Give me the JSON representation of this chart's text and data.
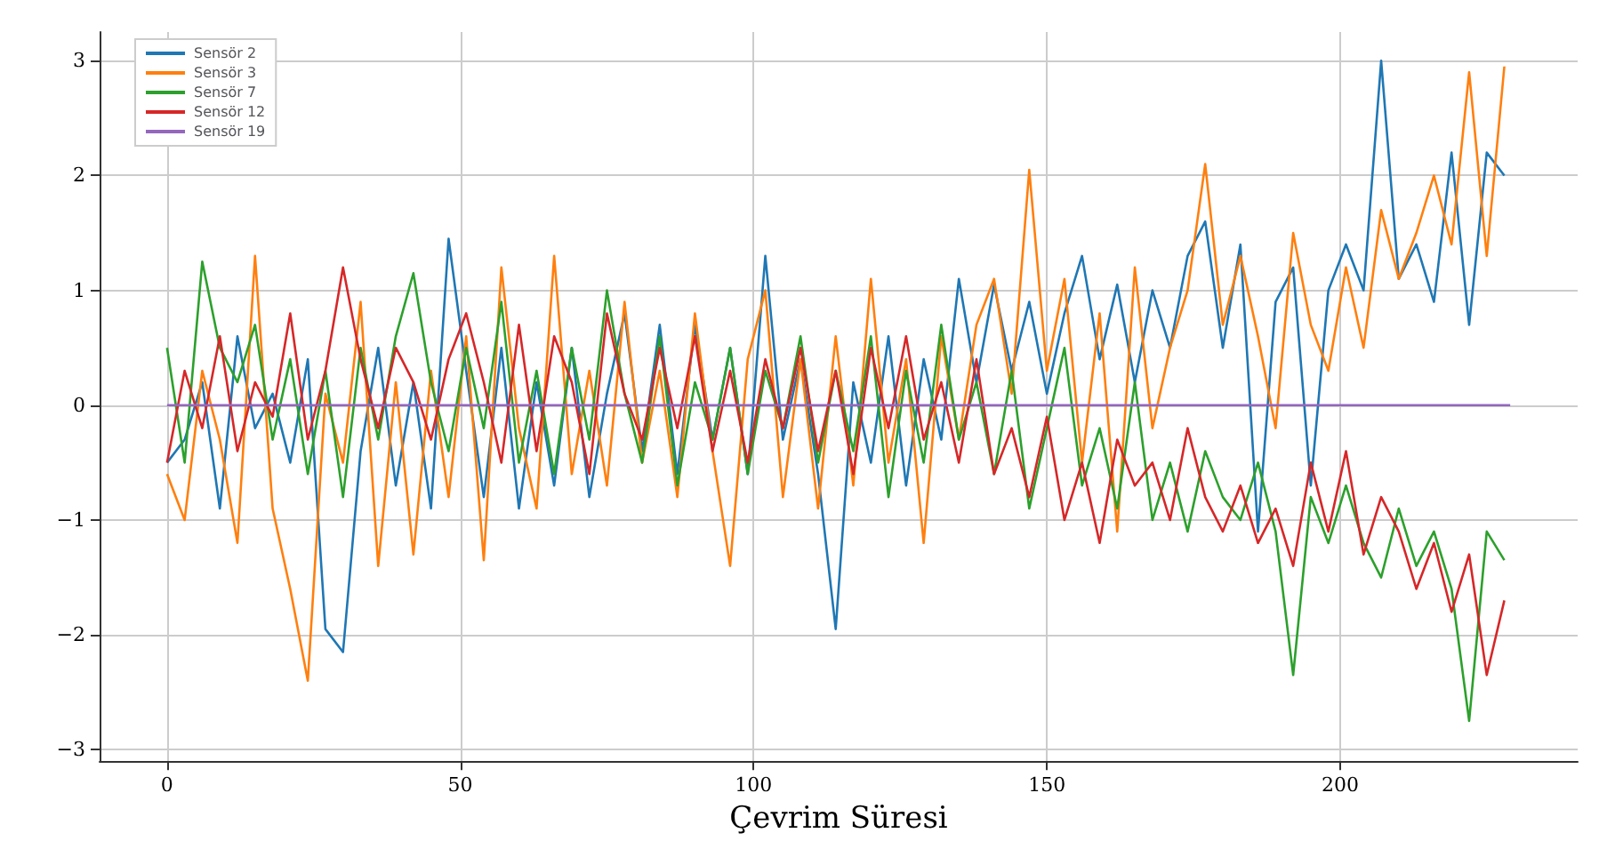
{
  "chart_data": {
    "type": "line",
    "xlabel": "Çevrim Süresi",
    "xlim": [
      -11.5,
      240.5
    ],
    "xticks": [
      0,
      50,
      100,
      150,
      200
    ],
    "ylim": [
      -3.1,
      3.25
    ],
    "yticks": [
      -3,
      -2,
      -1,
      0,
      1,
      2,
      3
    ],
    "grid": true,
    "legend": "top left",
    "marker": "none",
    "line_style": "solid",
    "x": [
      0,
      3,
      6,
      9,
      12,
      15,
      18,
      21,
      24,
      27,
      30,
      33,
      36,
      39,
      42,
      45,
      48,
      51,
      54,
      57,
      60,
      63,
      66,
      69,
      72,
      75,
      78,
      81,
      84,
      87,
      90,
      93,
      96,
      99,
      102,
      105,
      108,
      111,
      114,
      117,
      120,
      123,
      126,
      129,
      132,
      135,
      138,
      141,
      144,
      147,
      150,
      153,
      156,
      159,
      162,
      165,
      168,
      171,
      174,
      177,
      180,
      183,
      186,
      189,
      192,
      195,
      198,
      201,
      204,
      207,
      210,
      213,
      216,
      219,
      222,
      225,
      228
    ],
    "series": [
      {
        "name": "Sensör 2",
        "color": "#1f77b4",
        "values": [
          -0.5,
          -0.3,
          0.2,
          -0.9,
          0.6,
          -0.2,
          0.1,
          -0.5,
          0.4,
          -1.95,
          -2.15,
          -0.4,
          0.5,
          -0.7,
          0.2,
          -0.9,
          1.45,
          0.3,
          -0.8,
          0.5,
          -0.9,
          0.2,
          -0.7,
          0.5,
          -0.8,
          0.1,
          0.8,
          -0.4,
          0.7,
          -0.6,
          0.7,
          -0.3,
          0.5,
          -0.6,
          1.3,
          -0.3,
          0.4,
          -0.6,
          -1.95,
          0.2,
          -0.5,
          0.6,
          -0.7,
          0.4,
          -0.3,
          1.1,
          0.2,
          1.05,
          0.3,
          0.9,
          0.1,
          0.8,
          1.3,
          0.4,
          1.05,
          0.2,
          1.0,
          0.5,
          1.3,
          1.6,
          0.5,
          1.4,
          -1.1,
          0.9,
          1.2,
          -0.7,
          1.0,
          1.4,
          1.0,
          3.0,
          1.1,
          1.4,
          0.9,
          2.2,
          0.7,
          2.2,
          2.0
        ]
      },
      {
        "name": "Sensör 3",
        "color": "#ff7f0e",
        "values": [
          -0.6,
          -1.0,
          0.3,
          -0.3,
          -1.2,
          1.3,
          -0.9,
          -1.6,
          -2.4,
          0.1,
          -0.5,
          0.9,
          -1.4,
          0.2,
          -1.3,
          0.3,
          -0.8,
          0.6,
          -1.35,
          1.2,
          -0.2,
          -0.9,
          1.3,
          -0.6,
          0.3,
          -0.7,
          0.9,
          -0.5,
          0.3,
          -0.8,
          0.8,
          -0.4,
          -1.4,
          0.4,
          1.0,
          -0.8,
          0.4,
          -0.9,
          0.6,
          -0.7,
          1.1,
          -0.5,
          0.4,
          -1.2,
          0.6,
          -0.3,
          0.7,
          1.1,
          0.1,
          2.05,
          0.3,
          1.1,
          -0.5,
          0.8,
          -1.1,
          1.2,
          -0.2,
          0.5,
          1.0,
          2.1,
          0.7,
          1.3,
          0.6,
          -0.2,
          1.5,
          0.7,
          0.3,
          1.2,
          0.5,
          1.7,
          1.1,
          1.5,
          2.0,
          1.4,
          2.9,
          1.3,
          2.95
        ]
      },
      {
        "name": "Sensör 7",
        "color": "#2ca02c",
        "values": [
          0.5,
          -0.5,
          1.25,
          0.5,
          0.2,
          0.7,
          -0.3,
          0.4,
          -0.6,
          0.3,
          -0.8,
          0.5,
          -0.3,
          0.6,
          1.15,
          0.2,
          -0.4,
          0.5,
          -0.2,
          0.9,
          -0.5,
          0.3,
          -0.6,
          0.5,
          -0.3,
          1.0,
          0.1,
          -0.5,
          0.6,
          -0.7,
          0.2,
          -0.3,
          0.5,
          -0.6,
          0.3,
          -0.2,
          0.6,
          -0.5,
          0.3,
          -0.4,
          0.6,
          -0.8,
          0.3,
          -0.5,
          0.7,
          -0.3,
          0.2,
          -0.6,
          0.3,
          -0.9,
          -0.2,
          0.5,
          -0.7,
          -0.2,
          -0.9,
          0.2,
          -1.0,
          -0.5,
          -1.1,
          -0.4,
          -0.8,
          -1.0,
          -0.5,
          -1.1,
          -2.35,
          -0.8,
          -1.2,
          -0.7,
          -1.2,
          -1.5,
          -0.9,
          -1.4,
          -1.1,
          -1.6,
          -2.75,
          -1.1,
          -1.35
        ]
      },
      {
        "name": "Sensör 12",
        "color": "#d62728",
        "values": [
          -0.5,
          0.3,
          -0.2,
          0.6,
          -0.4,
          0.2,
          -0.1,
          0.8,
          -0.3,
          0.3,
          1.2,
          0.4,
          -0.2,
          0.5,
          0.2,
          -0.3,
          0.4,
          0.8,
          0.2,
          -0.5,
          0.7,
          -0.4,
          0.6,
          0.2,
          -0.6,
          0.8,
          0.1,
          -0.3,
          0.5,
          -0.2,
          0.6,
          -0.4,
          0.3,
          -0.5,
          0.4,
          -0.2,
          0.5,
          -0.4,
          0.3,
          -0.6,
          0.5,
          -0.2,
          0.6,
          -0.3,
          0.2,
          -0.5,
          0.4,
          -0.6,
          -0.2,
          -0.8,
          -0.1,
          -1.0,
          -0.5,
          -1.2,
          -0.3,
          -0.7,
          -0.5,
          -1.0,
          -0.2,
          -0.8,
          -1.1,
          -0.7,
          -1.2,
          -0.9,
          -1.4,
          -0.5,
          -1.1,
          -0.4,
          -1.3,
          -0.8,
          -1.1,
          -1.6,
          -1.2,
          -1.8,
          -1.3,
          -2.35,
          -1.7
        ]
      },
      {
        "name": "Sensör 19",
        "color": "#9467bd",
        "x": [
          0,
          229
        ],
        "values": [
          0,
          0
        ]
      }
    ]
  }
}
